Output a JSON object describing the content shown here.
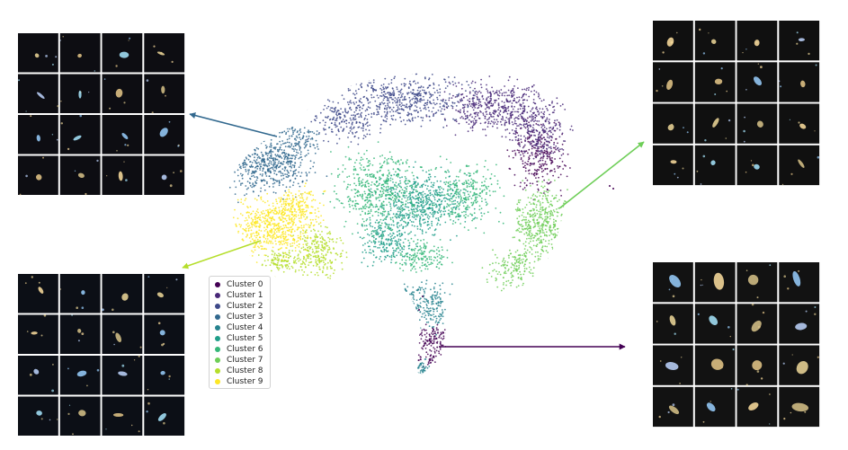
{
  "chart_data": {
    "type": "scatter",
    "title": "",
    "xlabel": "",
    "ylabel": "",
    "grid": false,
    "axes_visible": false,
    "legend_position": "lower-left of embedding",
    "series": [
      {
        "name": "Cluster 0",
        "color": "#440154",
        "region": "right edge and bottom tail"
      },
      {
        "name": "Cluster 1",
        "color": "#482878",
        "region": "top right"
      },
      {
        "name": "Cluster 2",
        "color": "#3e4989",
        "region": "top"
      },
      {
        "name": "Cluster 3",
        "color": "#31688e",
        "region": "upper left"
      },
      {
        "name": "Cluster 4",
        "color": "#26828e",
        "region": "lower tail"
      },
      {
        "name": "Cluster 5",
        "color": "#1f9e89",
        "region": "center"
      },
      {
        "name": "Cluster 6",
        "color": "#35b779",
        "region": "center"
      },
      {
        "name": "Cluster 7",
        "color": "#6ece58",
        "region": "right"
      },
      {
        "name": "Cluster 8",
        "color": "#b5de2b",
        "region": "lower left"
      },
      {
        "name": "Cluster 9",
        "color": "#fde725",
        "region": "left"
      }
    ],
    "image_panels": [
      {
        "cluster": "Cluster 3",
        "position": "top-left",
        "thumbnails": 16,
        "tone": "#0d0d12"
      },
      {
        "cluster": "Cluster 8",
        "position": "bottom-left",
        "thumbnails": 16,
        "tone": "#0c0f16"
      },
      {
        "cluster": "Cluster 7",
        "position": "top-right",
        "thumbnails": 16,
        "tone": "#101010"
      },
      {
        "cluster": "Cluster 0",
        "position": "bottom-right",
        "thumbnails": 16,
        "tone": "#121212"
      }
    ]
  }
}
